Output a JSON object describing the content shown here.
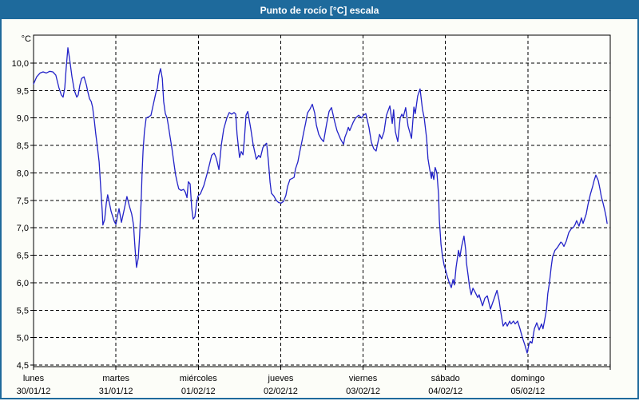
{
  "window": {
    "title": "Punto de rocío [°C] escala"
  },
  "colors": {
    "titlebar": "#1e6a9c",
    "frame": "#1e6a9c",
    "background": "#fcfdf8",
    "plot_background": "#fdfefb",
    "grid": "#000000",
    "axis": "#000000",
    "text": "#000000",
    "series_line": "#2323c8"
  },
  "chart_data": {
    "type": "line",
    "title": "Punto de rocío [°C] escala",
    "ylabel": "°C",
    "xlabel": "",
    "grid": "dashed",
    "legend_position": "none",
    "ylim": [
      4.45,
      10.55
    ],
    "yticks": [
      {
        "value": 4.5,
        "label": "4,5"
      },
      {
        "value": 5.0,
        "label": "5,0"
      },
      {
        "value": 5.5,
        "label": "5,5"
      },
      {
        "value": 6.0,
        "label": "6,0"
      },
      {
        "value": 6.5,
        "label": "6,5"
      },
      {
        "value": 7.0,
        "label": "7,0"
      },
      {
        "value": 7.5,
        "label": "7,5"
      },
      {
        "value": 8.0,
        "label": "8,0"
      },
      {
        "value": 8.5,
        "label": "8,5"
      },
      {
        "value": 9.0,
        "label": "9,0"
      },
      {
        "value": 9.5,
        "label": "9,5"
      },
      {
        "value": 10.0,
        "label": "10,0"
      }
    ],
    "x_axis": {
      "unit": "hours_from_start",
      "range": [
        0,
        168
      ],
      "day_ticks": [
        {
          "hours": 0,
          "day": "lunes",
          "date": "30/01/12"
        },
        {
          "hours": 24,
          "day": "martes",
          "date": "31/01/12"
        },
        {
          "hours": 48,
          "day": "miércoles",
          "date": "01/02/12"
        },
        {
          "hours": 72,
          "day": "jueves",
          "date": "02/02/12"
        },
        {
          "hours": 96,
          "day": "viernes",
          "date": "03/02/12"
        },
        {
          "hours": 120,
          "day": "sábado",
          "date": "04/02/12"
        },
        {
          "hours": 144,
          "day": "domingo",
          "date": "05/02/12"
        }
      ]
    },
    "series": [
      {
        "name": "Punto de rocío [°C]",
        "color": "#2323c8",
        "points": [
          [
            0,
            9.62
          ],
          [
            0.9,
            9.75
          ],
          [
            1.9,
            9.82
          ],
          [
            2.8,
            9.84
          ],
          [
            3.7,
            9.82
          ],
          [
            4.7,
            9.85
          ],
          [
            5.6,
            9.84
          ],
          [
            6.5,
            9.78
          ],
          [
            7.4,
            9.55
          ],
          [
            8.1,
            9.42
          ],
          [
            8.6,
            9.38
          ],
          [
            9.1,
            9.55
          ],
          [
            9.5,
            9.9
          ],
          [
            10,
            10.28
          ],
          [
            10.5,
            10.08
          ],
          [
            11.2,
            9.75
          ],
          [
            11.9,
            9.5
          ],
          [
            12.6,
            9.38
          ],
          [
            13,
            9.42
          ],
          [
            13.5,
            9.6
          ],
          [
            14,
            9.72
          ],
          [
            14.7,
            9.75
          ],
          [
            15.4,
            9.6
          ],
          [
            15.8,
            9.48
          ],
          [
            16.3,
            9.35
          ],
          [
            16.8,
            9.3
          ],
          [
            17.2,
            9.2
          ],
          [
            17.7,
            8.95
          ],
          [
            18.1,
            8.72
          ],
          [
            18.6,
            8.48
          ],
          [
            19.1,
            8.2
          ],
          [
            19.5,
            7.8
          ],
          [
            20,
            7.3
          ],
          [
            20.2,
            7.05
          ],
          [
            20.7,
            7.15
          ],
          [
            21.2,
            7.45
          ],
          [
            21.6,
            7.6
          ],
          [
            22.1,
            7.45
          ],
          [
            22.6,
            7.3
          ],
          [
            23,
            7.22
          ],
          [
            23.5,
            7.12
          ],
          [
            24,
            7.06
          ],
          [
            24.4,
            7.2
          ],
          [
            24.9,
            7.35
          ],
          [
            25.6,
            7.1
          ],
          [
            26.3,
            7.3
          ],
          [
            27.2,
            7.57
          ],
          [
            27.9,
            7.4
          ],
          [
            28.6,
            7.25
          ],
          [
            29.1,
            7.06
          ],
          [
            29.6,
            6.6
          ],
          [
            30,
            6.28
          ],
          [
            30.5,
            6.45
          ],
          [
            30.9,
            6.86
          ],
          [
            31.4,
            7.55
          ],
          [
            31.6,
            7.97
          ],
          [
            31.9,
            8.4
          ],
          [
            32.3,
            8.75
          ],
          [
            32.8,
            9.0
          ],
          [
            33.5,
            9.02
          ],
          [
            34.2,
            9.05
          ],
          [
            34.9,
            9.25
          ],
          [
            35.6,
            9.45
          ],
          [
            36.1,
            9.55
          ],
          [
            36.5,
            9.78
          ],
          [
            37,
            9.9
          ],
          [
            37.5,
            9.72
          ],
          [
            37.9,
            9.3
          ],
          [
            38.4,
            9.08
          ],
          [
            38.9,
            9.0
          ],
          [
            39.3,
            8.85
          ],
          [
            39.8,
            8.65
          ],
          [
            40.3,
            8.45
          ],
          [
            41,
            8.13
          ],
          [
            41.4,
            7.96
          ],
          [
            41.9,
            7.81
          ],
          [
            42.3,
            7.71
          ],
          [
            43,
            7.68
          ],
          [
            43.7,
            7.7
          ],
          [
            44.2,
            7.65
          ],
          [
            44.7,
            7.55
          ],
          [
            45.1,
            7.84
          ],
          [
            45.6,
            7.8
          ],
          [
            46.1,
            7.35
          ],
          [
            46.5,
            7.16
          ],
          [
            47,
            7.2
          ],
          [
            47.5,
            7.45
          ],
          [
            47.9,
            7.58
          ],
          [
            48.6,
            7.62
          ],
          [
            49.6,
            7.77
          ],
          [
            50.5,
            7.97
          ],
          [
            51.2,
            8.14
          ],
          [
            51.9,
            8.32
          ],
          [
            52.6,
            8.36
          ],
          [
            53.1,
            8.29
          ],
          [
            53.5,
            8.2
          ],
          [
            54,
            8.06
          ],
          [
            54.7,
            8.51
          ],
          [
            55.4,
            8.8
          ],
          [
            56.3,
            9.0
          ],
          [
            57,
            9.1
          ],
          [
            57.7,
            9.07
          ],
          [
            58.4,
            9.1
          ],
          [
            58.9,
            9.07
          ],
          [
            59.3,
            8.7
          ],
          [
            60,
            8.28
          ],
          [
            60.5,
            8.39
          ],
          [
            61,
            8.33
          ],
          [
            61.4,
            8.6
          ],
          [
            61.9,
            9.05
          ],
          [
            62.4,
            9.12
          ],
          [
            63.3,
            8.8
          ],
          [
            64,
            8.51
          ],
          [
            64.9,
            8.25
          ],
          [
            65.6,
            8.32
          ],
          [
            66.1,
            8.28
          ],
          [
            66.8,
            8.46
          ],
          [
            67.5,
            8.52
          ],
          [
            67.9,
            8.54
          ],
          [
            68.4,
            8.22
          ],
          [
            68.9,
            7.83
          ],
          [
            69.3,
            7.63
          ],
          [
            70,
            7.58
          ],
          [
            70.7,
            7.5
          ],
          [
            71.4,
            7.46
          ],
          [
            72.1,
            7.45
          ],
          [
            72.8,
            7.48
          ],
          [
            73.5,
            7.59
          ],
          [
            74,
            7.75
          ],
          [
            74.7,
            7.88
          ],
          [
            75.4,
            7.9
          ],
          [
            75.9,
            7.92
          ],
          [
            76.3,
            8.07
          ],
          [
            77,
            8.2
          ],
          [
            77.5,
            8.37
          ],
          [
            78.2,
            8.58
          ],
          [
            78.6,
            8.71
          ],
          [
            79.3,
            8.92
          ],
          [
            79.8,
            9.09
          ],
          [
            80.5,
            9.16
          ],
          [
            81.2,
            9.25
          ],
          [
            81.9,
            9.09
          ],
          [
            82.4,
            8.87
          ],
          [
            83.1,
            8.7
          ],
          [
            83.8,
            8.62
          ],
          [
            84.5,
            8.57
          ],
          [
            85.4,
            8.9
          ],
          [
            86.1,
            9.12
          ],
          [
            86.8,
            9.19
          ],
          [
            87.7,
            8.94
          ],
          [
            88.4,
            8.77
          ],
          [
            89.4,
            8.62
          ],
          [
            90.3,
            8.52
          ],
          [
            90.7,
            8.65
          ],
          [
            91.2,
            8.73
          ],
          [
            91.7,
            8.83
          ],
          [
            92.1,
            8.77
          ],
          [
            93.1,
            8.92
          ],
          [
            93.8,
            9.0
          ],
          [
            94.7,
            9.05
          ],
          [
            95.6,
            9.0
          ],
          [
            96.1,
            9.05
          ],
          [
            96.8,
            9.08
          ],
          [
            97.7,
            8.83
          ],
          [
            98.4,
            8.56
          ],
          [
            99.1,
            8.44
          ],
          [
            99.8,
            8.4
          ],
          [
            100.8,
            8.7
          ],
          [
            101.4,
            8.62
          ],
          [
            102.1,
            8.75
          ],
          [
            102.8,
            9.05
          ],
          [
            103.8,
            9.22
          ],
          [
            104.5,
            8.9
          ],
          [
            104.9,
            9.15
          ],
          [
            105.4,
            8.75
          ],
          [
            106.1,
            8.57
          ],
          [
            106.8,
            9.0
          ],
          [
            107.3,
            9.07
          ],
          [
            107.7,
            9.02
          ],
          [
            108.4,
            9.19
          ],
          [
            109.1,
            8.85
          ],
          [
            110.1,
            8.63
          ],
          [
            110.8,
            9.2
          ],
          [
            111.2,
            9.08
          ],
          [
            111.9,
            9.4
          ],
          [
            112.6,
            9.53
          ],
          [
            113.3,
            9.16
          ],
          [
            113.8,
            9.0
          ],
          [
            114.5,
            8.63
          ],
          [
            114.9,
            8.26
          ],
          [
            115.4,
            8.07
          ],
          [
            115.9,
            7.9
          ],
          [
            116.1,
            8.02
          ],
          [
            116.6,
            7.88
          ],
          [
            117,
            8.1
          ],
          [
            117.5,
            8.0
          ],
          [
            118,
            7.6
          ],
          [
            118.2,
            7.15
          ],
          [
            118.7,
            6.7
          ],
          [
            119.1,
            6.5
          ],
          [
            119.6,
            6.32
          ],
          [
            120.1,
            6.22
          ],
          [
            120.5,
            6.12
          ],
          [
            121,
            6.02
          ],
          [
            121.7,
            5.91
          ],
          [
            122.2,
            6.06
          ],
          [
            122.6,
            5.96
          ],
          [
            123.1,
            6.28
          ],
          [
            123.6,
            6.5
          ],
          [
            123.8,
            6.59
          ],
          [
            124.2,
            6.47
          ],
          [
            124.7,
            6.66
          ],
          [
            125.4,
            6.85
          ],
          [
            125.9,
            6.59
          ],
          [
            126.1,
            6.37
          ],
          [
            126.6,
            6.13
          ],
          [
            127,
            5.93
          ],
          [
            127.5,
            5.78
          ],
          [
            128,
            5.9
          ],
          [
            128.7,
            5.82
          ],
          [
            129.4,
            5.73
          ],
          [
            129.8,
            5.78
          ],
          [
            130.8,
            5.58
          ],
          [
            131.5,
            5.72
          ],
          [
            132.2,
            5.76
          ],
          [
            133.1,
            5.52
          ],
          [
            134,
            5.68
          ],
          [
            135,
            5.86
          ],
          [
            135.6,
            5.68
          ],
          [
            136.1,
            5.47
          ],
          [
            136.8,
            5.21
          ],
          [
            137.5,
            5.28
          ],
          [
            138,
            5.21
          ],
          [
            138.7,
            5.3
          ],
          [
            139.1,
            5.25
          ],
          [
            139.8,
            5.3
          ],
          [
            140.3,
            5.25
          ],
          [
            141,
            5.3
          ],
          [
            141.7,
            5.16
          ],
          [
            142.4,
            5.0
          ],
          [
            143.1,
            4.87
          ],
          [
            143.8,
            4.72
          ],
          [
            144.3,
            4.87
          ],
          [
            144.7,
            4.93
          ],
          [
            145.2,
            4.9
          ],
          [
            145.9,
            5.16
          ],
          [
            146.6,
            5.27
          ],
          [
            147.3,
            5.14
          ],
          [
            148,
            5.25
          ],
          [
            148.4,
            5.16
          ],
          [
            148.9,
            5.32
          ],
          [
            149.4,
            5.5
          ],
          [
            149.8,
            5.8
          ],
          [
            150.3,
            6.0
          ],
          [
            150.8,
            6.29
          ],
          [
            151.2,
            6.47
          ],
          [
            151.9,
            6.59
          ],
          [
            152.6,
            6.64
          ],
          [
            153.1,
            6.69
          ],
          [
            153.6,
            6.74
          ],
          [
            154,
            6.72
          ],
          [
            154.5,
            6.66
          ],
          [
            155.2,
            6.76
          ],
          [
            155.9,
            6.91
          ],
          [
            156.6,
            6.98
          ],
          [
            157.3,
            7.01
          ],
          [
            157.7,
            7.05
          ],
          [
            158.2,
            7.13
          ],
          [
            158.9,
            7.03
          ],
          [
            159.6,
            7.18
          ],
          [
            160.1,
            7.08
          ],
          [
            161,
            7.25
          ],
          [
            161.5,
            7.42
          ],
          [
            162.2,
            7.61
          ],
          [
            162.9,
            7.76
          ],
          [
            163.3,
            7.86
          ],
          [
            163.8,
            7.96
          ],
          [
            164.5,
            7.86
          ],
          [
            165,
            7.71
          ],
          [
            165.4,
            7.57
          ],
          [
            165.9,
            7.45
          ],
          [
            166.4,
            7.32
          ],
          [
            166.8,
            7.2
          ],
          [
            167.1,
            7.08
          ]
        ]
      }
    ]
  }
}
